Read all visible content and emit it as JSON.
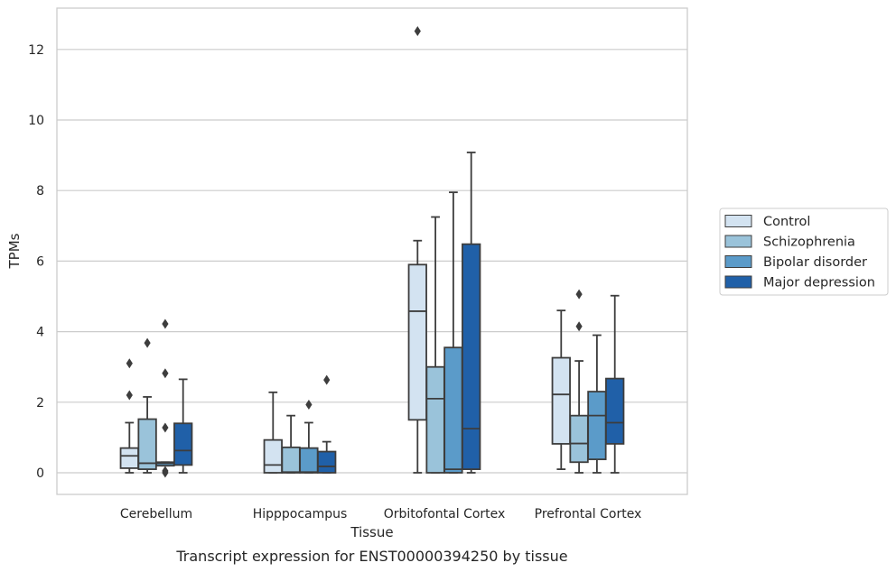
{
  "chart_data": {
    "type": "box",
    "xlabel": "Tissue",
    "ylabel": "TPMs",
    "caption": "Transcript expression for ENST00000394250 by tissue",
    "ylim": [
      -0.6,
      13.2
    ],
    "yticks": [
      0,
      2,
      4,
      6,
      8,
      10,
      12
    ],
    "grid": "horizontal",
    "legend_position": "right",
    "categories": [
      "Cerebellum",
      "Hipppocampus",
      "Orbitofontal Cortex",
      "Prefrontal Cortex"
    ],
    "series": [
      {
        "name": "Control",
        "color": "#d3e3f1",
        "boxes": [
          {
            "whislo": 0.0,
            "q1": 0.13,
            "med": 0.48,
            "q3": 0.7,
            "whishi": 1.42,
            "fliers": [
              2.2,
              3.1
            ]
          },
          {
            "whislo": 0.0,
            "q1": 0.0,
            "med": 0.22,
            "q3": 0.93,
            "whishi": 2.28,
            "fliers": []
          },
          {
            "whislo": 0.0,
            "q1": 1.5,
            "med": 4.58,
            "q3": 5.9,
            "whishi": 6.58,
            "fliers": [
              12.52
            ]
          },
          {
            "whislo": 0.1,
            "q1": 0.82,
            "med": 2.22,
            "q3": 3.26,
            "whishi": 4.6,
            "fliers": []
          }
        ]
      },
      {
        "name": "Schizophrenia",
        "color": "#9ac3da",
        "boxes": [
          {
            "whislo": 0.0,
            "q1": 0.1,
            "med": 0.27,
            "q3": 1.52,
            "whishi": 2.15,
            "fliers": [
              3.68
            ]
          },
          {
            "whislo": 0.0,
            "q1": 0.0,
            "med": 0.02,
            "q3": 0.72,
            "whishi": 1.62,
            "fliers": []
          },
          {
            "whislo": 0.0,
            "q1": 0.0,
            "med": 2.1,
            "q3": 3.0,
            "whishi": 7.25,
            "fliers": []
          },
          {
            "whislo": 0.0,
            "q1": 0.3,
            "med": 0.83,
            "q3": 1.62,
            "whishi": 3.17,
            "fliers": [
              4.15,
              5.06
            ]
          }
        ]
      },
      {
        "name": "Bipolar disorder",
        "color": "#5b9bc9",
        "boxes": [
          {
            "whislo": 0.2,
            "q1": 0.2,
            "med": 0.27,
            "q3": 0.3,
            "whishi": 0.3,
            "fliers": [
              0.0,
              0.05,
              1.28,
              2.82,
              4.22
            ]
          },
          {
            "whislo": 0.0,
            "q1": 0.0,
            "med": 0.02,
            "q3": 0.7,
            "whishi": 1.42,
            "fliers": [
              1.93
            ]
          },
          {
            "whislo": 0.0,
            "q1": 0.0,
            "med": 0.1,
            "q3": 3.55,
            "whishi": 7.95,
            "fliers": []
          },
          {
            "whislo": 0.0,
            "q1": 0.38,
            "med": 1.62,
            "q3": 2.3,
            "whishi": 3.9,
            "fliers": []
          }
        ]
      },
      {
        "name": "Major depression",
        "color": "#2060a8",
        "boxes": [
          {
            "whislo": 0.0,
            "q1": 0.22,
            "med": 0.63,
            "q3": 1.4,
            "whishi": 2.65,
            "fliers": []
          },
          {
            "whislo": 0.0,
            "q1": 0.0,
            "med": 0.18,
            "q3": 0.6,
            "whishi": 0.88,
            "fliers": [
              2.63
            ]
          },
          {
            "whislo": 0.0,
            "q1": 0.1,
            "med": 1.25,
            "q3": 6.48,
            "whishi": 9.08,
            "fliers": []
          },
          {
            "whislo": 0.0,
            "q1": 0.82,
            "med": 1.42,
            "q3": 2.67,
            "whishi": 5.02,
            "fliers": []
          }
        ]
      }
    ]
  }
}
